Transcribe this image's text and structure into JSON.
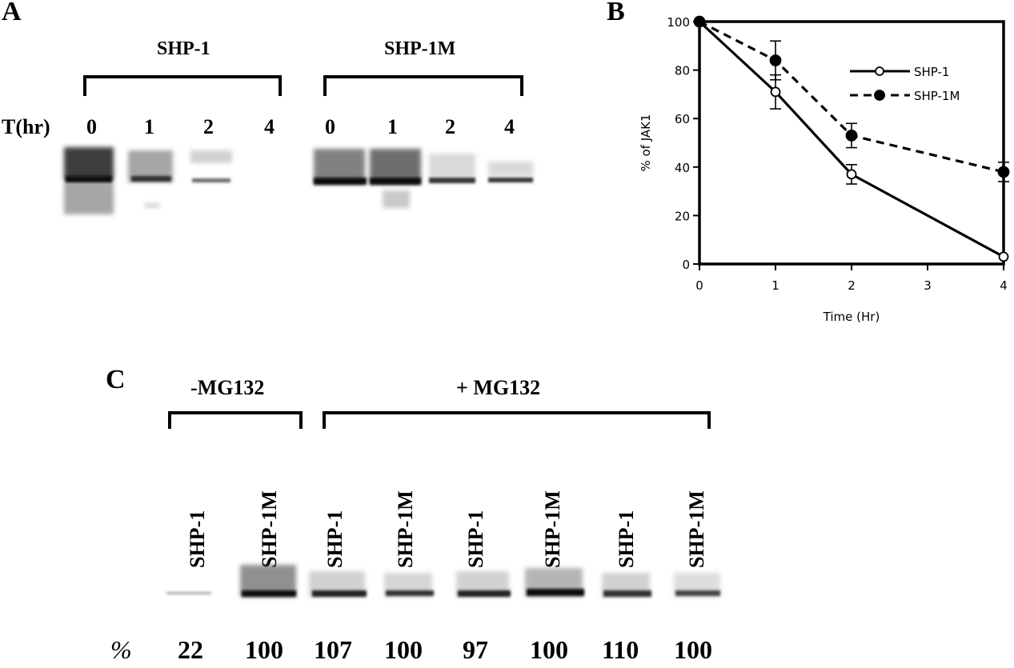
{
  "panel_a": {
    "letter": "A",
    "groups": [
      "SHP-1",
      "SHP-1M"
    ],
    "time_axis_label": "T(hr)",
    "time_points": [
      "0",
      "1",
      "2",
      "4",
      "0",
      "1",
      "2",
      "4"
    ]
  },
  "panel_b": {
    "letter": "B"
  },
  "panel_c": {
    "letter": "C",
    "groups": [
      "-MG132",
      "+ MG132"
    ],
    "lane_labels": [
      "SHP-1",
      "SHP-1M",
      "SHP-1",
      "SHP-1M",
      "SHP-1",
      "SHP-1M",
      "SHP-1",
      "SHP-1M"
    ],
    "percent_label": "%",
    "percent_values": [
      "22",
      "100",
      "107",
      "100",
      "97",
      "100",
      "110",
      "100"
    ]
  },
  "chart_data": {
    "type": "line",
    "title": "",
    "xlabel": "Time (Hr)",
    "ylabel": "% of JAK1",
    "x": [
      0,
      1,
      2,
      4
    ],
    "x_ticks": [
      "0",
      "1",
      "2",
      "3",
      "4"
    ],
    "y_ticks": [
      "0",
      "20",
      "40",
      "60",
      "80",
      "100"
    ],
    "xlim": [
      0,
      4
    ],
    "ylim": [
      0,
      100
    ],
    "grid": false,
    "legend_position": "top-right",
    "series": [
      {
        "name": "SHP-1",
        "values": [
          100,
          71,
          37,
          3
        ],
        "errors": [
          0,
          7,
          4,
          0
        ],
        "style": "solid",
        "marker": "open-circle"
      },
      {
        "name": "SHP-1M",
        "values": [
          100,
          84,
          53,
          38
        ],
        "errors": [
          0,
          8,
          5,
          4
        ],
        "style": "dashed",
        "marker": "filled-circle"
      }
    ]
  }
}
